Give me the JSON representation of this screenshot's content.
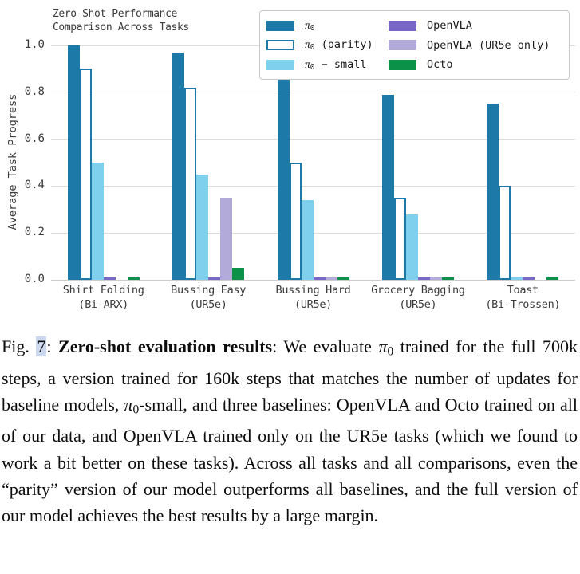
{
  "chart_data": {
    "type": "bar",
    "title": "Zero-Shot Performance Comparison Across Tasks",
    "title_lines": [
      "Zero-Shot Performance",
      "Comparison Across Tasks"
    ],
    "ylabel": "Average Task Progress",
    "xlabel": "",
    "ylim": [
      0.0,
      1.0
    ],
    "yticks": [
      0.0,
      0.2,
      0.4,
      0.6,
      0.8,
      1.0
    ],
    "grid": "horizontal",
    "legend_position": "upper-right, 2 columns, framed",
    "categories": [
      {
        "name": "Shirt Folding",
        "sub": "(Bi-ARX)"
      },
      {
        "name": "Bussing Easy",
        "sub": "(UR5e)"
      },
      {
        "name": "Bussing Hard",
        "sub": "(UR5e)"
      },
      {
        "name": "Grocery Bagging",
        "sub": "(UR5e)"
      },
      {
        "name": "Toast",
        "sub": "(Bi-Trossen)"
      }
    ],
    "series": [
      {
        "name": "π₀",
        "color": "#1d7aa8",
        "fill": "solid",
        "values": [
          1.0,
          0.97,
          0.87,
          0.79,
          0.75
        ]
      },
      {
        "name": "π₀ (parity)",
        "color": "#1d7aa8",
        "fill": "outline",
        "values": [
          0.9,
          0.82,
          0.5,
          0.35,
          0.4
        ]
      },
      {
        "name": "π₀ − small",
        "color": "#7ed0ed",
        "fill": "solid",
        "values": [
          0.5,
          0.45,
          0.34,
          0.28,
          0.01
        ]
      },
      {
        "name": "OpenVLA",
        "color": "#7a68c8",
        "fill": "solid",
        "values": [
          0.01,
          0.01,
          0.01,
          0.01,
          0.01
        ]
      },
      {
        "name": "OpenVLA (UR5e only)",
        "color": "#b2aad8",
        "fill": "solid",
        "values": [
          0,
          0.35,
          0.01,
          0.01,
          0
        ]
      },
      {
        "name": "Octo",
        "color": "#0c9148",
        "fill": "solid",
        "values": [
          0.01,
          0.05,
          0.01,
          0.01,
          0.01
        ]
      }
    ]
  },
  "caption": {
    "segments": [
      {
        "text": "Fig. ",
        "style": "normal"
      },
      {
        "text": "7",
        "style": "link"
      },
      {
        "text": ": ",
        "style": "normal"
      },
      {
        "text": "Zero-shot evaluation results",
        "style": "bold"
      },
      {
        "text": ": We evaluate ",
        "style": "normal"
      },
      {
        "text": "π₀",
        "style": "math"
      },
      {
        "text": " trained for the full 700k steps, a version trained for 160k steps that matches the number of updates for baseline models, ",
        "style": "normal"
      },
      {
        "text": "π₀",
        "style": "math"
      },
      {
        "text": "-small, and three baselines: OpenVLA and Octo trained on all of our data, and OpenVLA trained only on the UR5e tasks (which we found to work a bit better on these tasks). Across all tasks and all comparisons, even the “parity” version of our model outperforms all baselines, and the full version of our model achieves the best results by a large margin.",
        "style": "normal"
      }
    ]
  },
  "colors": {
    "pi0": "#1d7aa8",
    "pi0_small": "#7ed0ed",
    "openvla": "#7a68c8",
    "openvla_ur5e": "#b2aad8",
    "octo": "#0c9148",
    "gridline": "#dcdcdc",
    "axis_text": "#3b3b3b",
    "legend_border": "#c9c9c9",
    "figref_highlight": "#ccd8ee"
  }
}
